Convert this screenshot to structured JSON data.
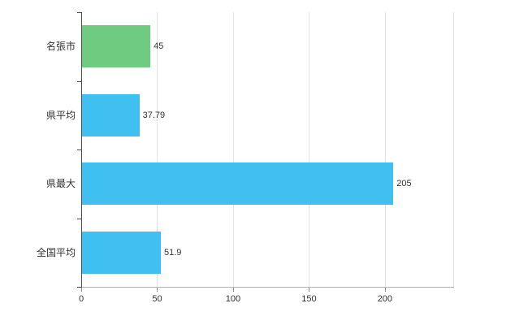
{
  "chart_data": {
    "type": "bar",
    "orientation": "horizontal",
    "title": "",
    "xlabel": "",
    "ylabel": "",
    "categories": [
      "名張市",
      "県平均",
      "県最大",
      "全国平均"
    ],
    "values": [
      45,
      37.79,
      205,
      51.9
    ],
    "value_labels": [
      "45",
      "37.79",
      "205",
      "51.9"
    ],
    "bar_colors": [
      "#6ecb80",
      "#3fc0f0",
      "#3fc0f0",
      "#3fc0f0"
    ],
    "xlim": [
      0,
      245
    ],
    "x_ticks": [
      0,
      50,
      100,
      150,
      200
    ],
    "grid": true,
    "legend": "none"
  },
  "colors": {
    "grid": "#e3e3e3",
    "axis_y": "#4d4d4d",
    "axis_x": "#b3b3b3",
    "text": "#333333",
    "background": "#ffffff"
  }
}
